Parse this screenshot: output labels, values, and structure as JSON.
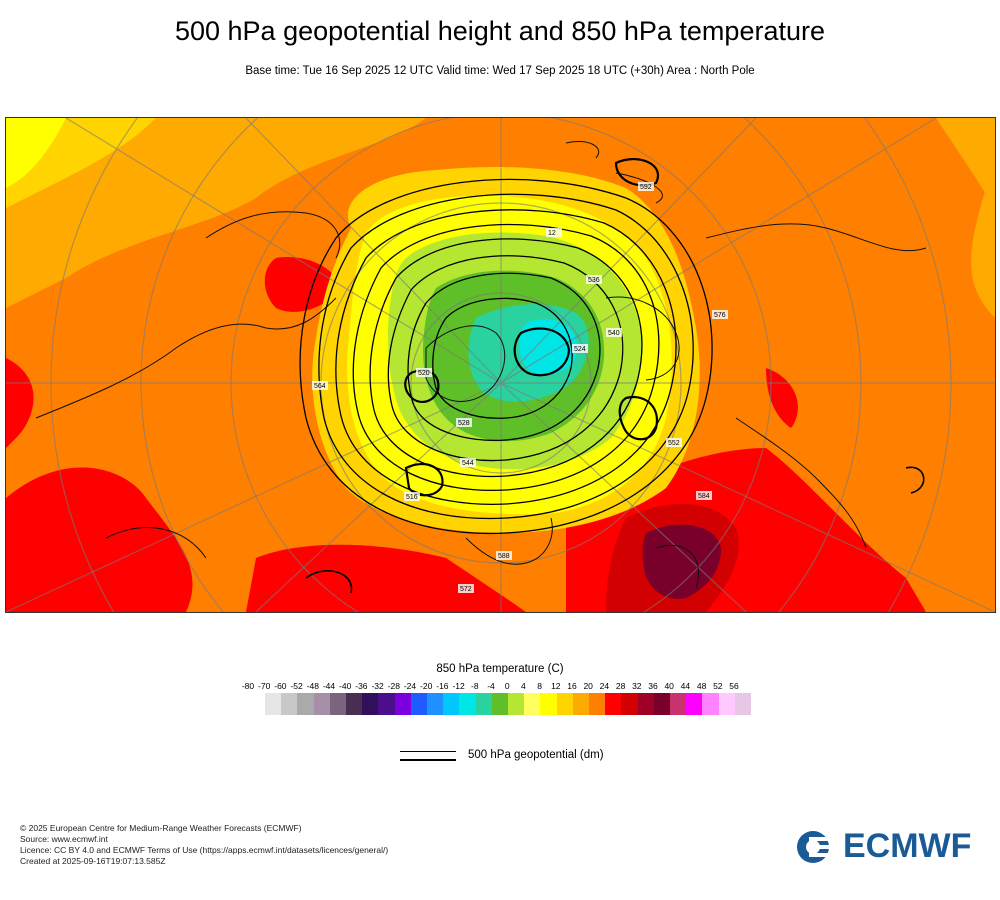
{
  "title": "500 hPa geopotential height and 850 hPa temperature",
  "subtitle": "Base time: Tue 16 Sep 2025 12 UTC Valid time: Wed 17 Sep 2025 18 UTC (+30h) Area : North Pole",
  "map": {
    "projection": "polar stereographic, North Pole",
    "contour_labels": [
      "516",
      "528",
      "540",
      "552",
      "564",
      "576",
      "588",
      "592",
      "584",
      "572",
      "544",
      "536",
      "524",
      "520",
      "12"
    ]
  },
  "legend": {
    "temperature_title": "850 hPa temperature (C)",
    "ticks": [
      "-80",
      "-70",
      "-60",
      "-52",
      "-48",
      "-44",
      "-40",
      "-36",
      "-32",
      "-28",
      "-24",
      "-20",
      "-16",
      "-12",
      "-8",
      "-4",
      "0",
      "4",
      "8",
      "12",
      "16",
      "20",
      "24",
      "28",
      "32",
      "36",
      "40",
      "44",
      "48",
      "52",
      "56"
    ],
    "colors": [
      "#e6e6e6",
      "#c8c8c8",
      "#aaaaaa",
      "#a88fa8",
      "#7a6480",
      "#4a2d52",
      "#30105a",
      "#4b0f8c",
      "#7b00e0",
      "#1e5cff",
      "#1e90ff",
      "#00c8ff",
      "#00e5e5",
      "#29d29e",
      "#5fbf28",
      "#b4e632",
      "#ffff60",
      "#ffff00",
      "#ffd400",
      "#ffaa00",
      "#ff7f00",
      "#ff0000",
      "#d20000",
      "#9e0026",
      "#78002a",
      "#c8326e",
      "#ff00ff",
      "#ff82ff",
      "#ffc8ff",
      "#e6c8e6"
    ],
    "geopotential_label": "500 hPa geopotential (dm)"
  },
  "credits": {
    "copyright": "© 2025 European Centre for Medium-Range Weather Forecasts (ECMWF)",
    "source": "Source: www.ecmwf.int",
    "licence": "Licence: CC BY 4.0 and ECMWF Terms of Use (https://apps.ecmwf.int/datasets/licences/general/)",
    "created": "Created at 2025-09-16T19:07:13.585Z"
  },
  "brand": {
    "name": "ECMWF",
    "color": "#1a5a96"
  }
}
